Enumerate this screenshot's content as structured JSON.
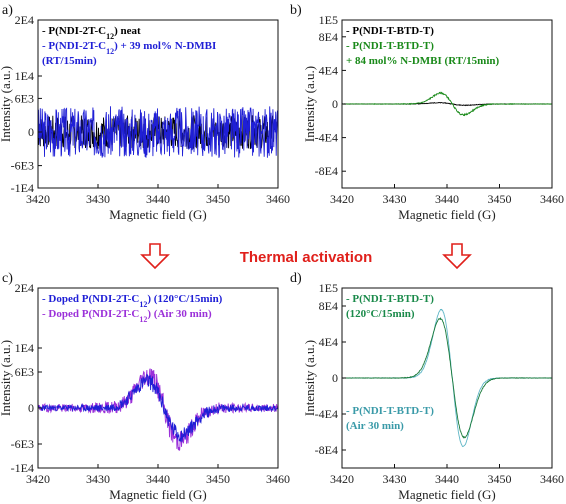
{
  "activation_label": "Thermal activation",
  "chart_data": [
    {
      "panel": "a)",
      "type": "line",
      "xlabel": "Magnetic field (G)",
      "ylabel": "Intensity (a.u.)",
      "xlim": [
        3420,
        3460
      ],
      "ylim": [
        -10000,
        20000
      ],
      "xticks": [
        3420,
        3430,
        3440,
        3450,
        3460
      ],
      "xtick_labels": [
        "3420",
        "3430",
        "3440",
        "3450",
        "3460"
      ],
      "yticks": [
        20000,
        10000,
        6000,
        0,
        -6000,
        -10000
      ],
      "ytick_labels": [
        "2E4",
        "1E4",
        "6E3",
        "0",
        "-6E3",
        "-1E4"
      ],
      "legend_lines": [
        {
          "text": "- P(NDI-2T-C",
          "sub": "12",
          "tail": ") neat",
          "color": "#000000"
        },
        {
          "text": "- P(NDI-2T-C",
          "sub": "12",
          "tail": ") + 39 mol% N-DMBI",
          "color": "#1f1fd6"
        },
        {
          "text": "(RT/15min)",
          "sub": "",
          "tail": "",
          "color": "#1f1fd6"
        }
      ],
      "series": [
        {
          "color": "#000000",
          "center": 3440,
          "amplitude": 0,
          "noise": 3000,
          "seed": 7
        },
        {
          "color": "#1f1fd6",
          "center": 3440,
          "amplitude": 0,
          "noise": 4600,
          "seed": 3
        }
      ]
    },
    {
      "panel": "b)",
      "type": "line",
      "xlabel": "Magnetic field (G)",
      "ylabel": "Intensity (a.u.)",
      "xlim": [
        3420,
        3460
      ],
      "ylim": [
        -100000,
        100000
      ],
      "xticks": [
        3420,
        3430,
        3440,
        3450,
        3460
      ],
      "xtick_labels": [
        "3420",
        "3430",
        "3440",
        "3450",
        "3460"
      ],
      "yticks": [
        100000,
        80000,
        40000,
        0,
        -40000,
        -80000
      ],
      "ytick_labels": [
        "1E5",
        "8E4",
        "4E4",
        "0",
        "-4E4",
        "-8E4"
      ],
      "legend_lines": [
        {
          "text": "- P(NDI-T-BTD-T)",
          "sub": "",
          "tail": "",
          "color": "#000000"
        },
        {
          "text": "- P(NDI-T-BTD-T)",
          "sub": "",
          "tail": "",
          "color": "#1a8a1a"
        },
        {
          "text": "+ 84 mol% N-DMBI (RT/15min)",
          "sub": "",
          "tail": "",
          "color": "#1a8a1a"
        }
      ],
      "series": [
        {
          "color": "#000000",
          "center": 3441,
          "amplitude": 1500,
          "width": 2.5,
          "noise": 400,
          "seed": 11
        },
        {
          "color": "#1a8a1a",
          "center": 3441,
          "amplitude": 13000,
          "width": 2.2,
          "noise": 900,
          "seed": 5
        }
      ]
    },
    {
      "panel": "c)",
      "type": "line",
      "xlabel": "Magnetic field (G)",
      "ylabel": "Intensity (a.u.)",
      "xlim": [
        3420,
        3460
      ],
      "ylim": [
        -10000,
        20000
      ],
      "xticks": [
        3420,
        3430,
        3440,
        3450,
        3460
      ],
      "xtick_labels": [
        "3420",
        "3430",
        "3440",
        "3450",
        "3460"
      ],
      "yticks": [
        20000,
        10000,
        6000,
        0,
        -6000,
        -10000
      ],
      "ytick_labels": [
        "2E4",
        "1E4",
        "6E3",
        "0",
        "-6E3",
        "-1E4"
      ],
      "legend_lines": [
        {
          "text": "- Doped P(NDI-2T-C",
          "sub": "12",
          "tail": ") (120°C/15min)",
          "color": "#1f1fd6"
        },
        {
          "text": "- Doped P(NDI-2T-C",
          "sub": "12",
          "tail": ") (Air 30 min)",
          "color": "#9b30d9"
        }
      ],
      "series": [
        {
          "color": "#9b30d9",
          "center": 3441,
          "amplitude": 5500,
          "width": 2.6,
          "noise": 1900,
          "seed": 19
        },
        {
          "color": "#1f1fd6",
          "center": 3441,
          "amplitude": 4500,
          "width": 2.8,
          "noise": 1400,
          "seed": 23
        }
      ]
    },
    {
      "panel": "d)",
      "type": "line",
      "xlabel": "Magnetic field (G)",
      "ylabel": "Intensity (a.u.)",
      "xlim": [
        3420,
        3460
      ],
      "ylim": [
        -100000,
        100000
      ],
      "xticks": [
        3420,
        3430,
        3440,
        3450,
        3460
      ],
      "xtick_labels": [
        "3420",
        "3430",
        "3440",
        "3450",
        "3460"
      ],
      "yticks": [
        100000,
        80000,
        40000,
        0,
        -40000,
        -80000
      ],
      "ytick_labels": [
        "1E5",
        "8E4",
        "4E4",
        "0",
        "-4E4",
        "-8E4"
      ],
      "legend_lines": [
        {
          "text": "- P(NDI-T-BTD-T)",
          "sub": "",
          "tail": "",
          "color": "#1a8a4a"
        },
        {
          "text": "(120°C/15min)",
          "sub": "",
          "tail": "",
          "color": "#1a8a4a"
        }
      ],
      "legend_lines_low": [
        {
          "text": "- P(NDI-T-BTD-T)",
          "sub": "",
          "tail": "",
          "color": "#3a9aa8"
        },
        {
          "text": "(Air 30 min)",
          "sub": "",
          "tail": "",
          "color": "#3a9aa8"
        }
      ],
      "series": [
        {
          "color": "#5fb6c6",
          "center": 3441,
          "amplitude": 76000,
          "width": 2.1,
          "noise": 500,
          "seed": 29
        },
        {
          "color": "#1a7a3a",
          "center": 3441,
          "amplitude": 66000,
          "width": 2.3,
          "noise": 700,
          "seed": 31
        }
      ]
    }
  ]
}
